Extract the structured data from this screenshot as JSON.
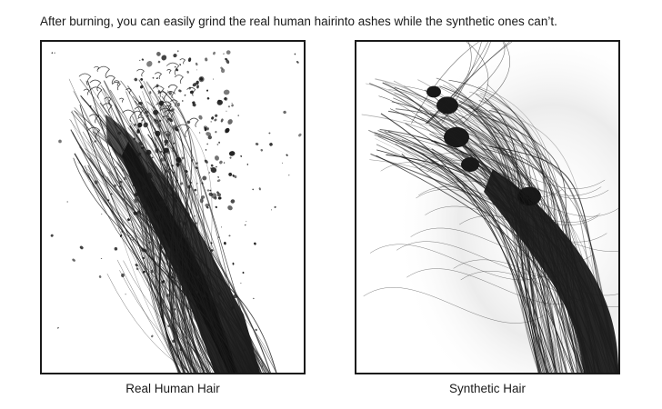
{
  "caption": "After burning, you can easily grind the real human hairinto ashes while the synthetic ones can’t.",
  "panels": {
    "left": {
      "label": "Real Human Hair",
      "ink_color": "#1c1c1c"
    },
    "right": {
      "label": "Synthetic Hair",
      "ink_color": "#1c1c1c"
    }
  }
}
